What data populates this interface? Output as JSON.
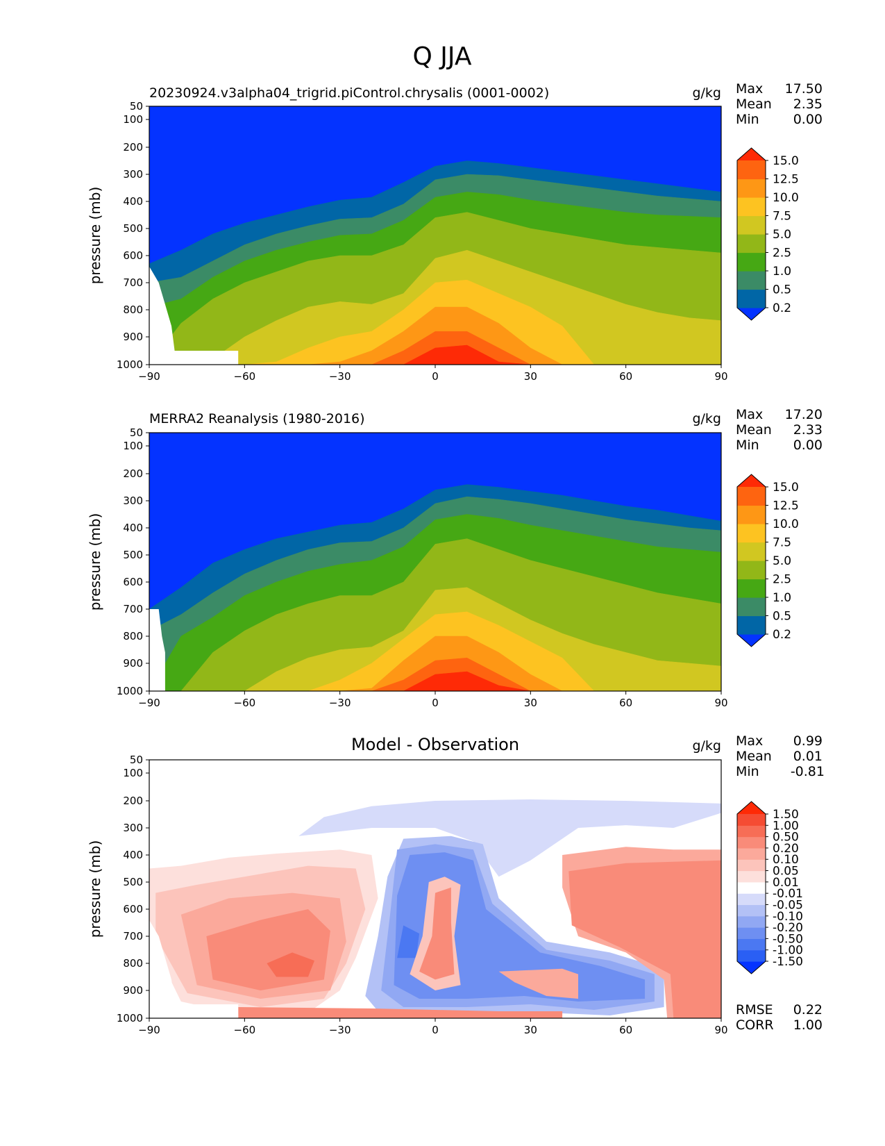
{
  "figure": {
    "title": "Q JJA"
  },
  "panels": [
    {
      "key": "test",
      "title": "20230924.v3alpha04_trigrid.piControl.chrysalis (0001-0002)",
      "units": "g/kg",
      "stats": {
        "max_label": "Max",
        "max": "17.50",
        "mean_label": "Mean",
        "mean": "2.35",
        "min_label": "Min",
        "min": "0.00"
      }
    },
    {
      "key": "ref",
      "title": "MERRA2 Reanalysis (1980-2016)",
      "units": "g/kg",
      "stats": {
        "max_label": "Max",
        "max": "17.20",
        "mean_label": "Mean",
        "mean": "2.33",
        "min_label": "Min",
        "min": "0.00"
      }
    },
    {
      "key": "diff",
      "title": "Model - Observation",
      "units": "g/kg",
      "stats": {
        "max_label": "Max",
        "max": "0.99",
        "mean_label": "Mean",
        "mean": "0.01",
        "min_label": "Min",
        "min": "-0.81"
      },
      "metrics": {
        "rmse_label": "RMSE",
        "rmse": "0.22",
        "corr_label": "CORR",
        "corr": "1.00"
      }
    }
  ],
  "chart_data": [
    {
      "type": "heatmap",
      "panel": "test",
      "x_ticks": [
        "−90",
        "−60",
        "−30",
        "0",
        "30",
        "60",
        "90"
      ],
      "y_ticks": [
        "50",
        "100",
        "200",
        "300",
        "400",
        "500",
        "600",
        "700",
        "800",
        "900",
        "1000"
      ],
      "ylabel": "pressure (mb)",
      "xlim": [
        -90,
        90
      ],
      "ylim": [
        1000,
        50
      ],
      "levels": [
        0.2,
        0.5,
        1.0,
        2.5,
        5.0,
        7.5,
        10.0,
        12.5,
        15.0
      ],
      "colors": [
        "#0433ff",
        "#0166a6",
        "#3b8b66",
        "#46a814",
        "#92b718",
        "#d1c721",
        "#fdc321",
        "#fe9715",
        "#fe6410",
        "#fe2a06"
      ],
      "colorbar_labels": [
        "15.0",
        "12.5",
        "10.0",
        "7.5",
        "5.0",
        "2.5",
        "1.0",
        "0.5",
        "0.2"
      ],
      "contour_tops_mb": {
        "lat": [
          -90,
          -80,
          -70,
          -60,
          -50,
          -40,
          -30,
          -20,
          -10,
          0,
          10,
          20,
          30,
          40,
          50,
          60,
          70,
          80,
          90
        ],
        "0.2": [
          630,
          580,
          520,
          480,
          450,
          420,
          395,
          385,
          330,
          270,
          250,
          260,
          275,
          290,
          305,
          320,
          335,
          350,
          365
        ],
        "0.5": [
          700,
          680,
          620,
          560,
          520,
          490,
          465,
          460,
          410,
          320,
          300,
          305,
          320,
          335,
          350,
          365,
          380,
          390,
          400
        ],
        "1.0": [
          790,
          760,
          680,
          620,
          580,
          550,
          525,
          520,
          470,
          385,
          365,
          375,
          395,
          410,
          425,
          440,
          450,
          455,
          460
        ],
        "2.5": [
          1000,
          850,
          760,
          700,
          660,
          620,
          600,
          600,
          560,
          460,
          440,
          470,
          500,
          520,
          540,
          560,
          570,
          580,
          590
        ],
        "5.0": [
          1000,
          1000,
          980,
          900,
          840,
          790,
          770,
          780,
          740,
          610,
          580,
          620,
          660,
          700,
          740,
          780,
          810,
          830,
          840
        ],
        "7.5": [
          1000,
          1000,
          1000,
          1000,
          990,
          940,
          900,
          880,
          800,
          700,
          690,
          740,
          790,
          860,
          1000,
          1000,
          1000,
          1000,
          1000
        ],
        "10.0": [
          1000,
          1000,
          1000,
          1000,
          1000,
          1000,
          990,
          950,
          880,
          790,
          790,
          850,
          940,
          1000,
          1000,
          1000,
          1000,
          1000,
          1000
        ],
        "12.5": [
          1000,
          1000,
          1000,
          1000,
          1000,
          1000,
          1000,
          1000,
          950,
          880,
          880,
          940,
          1000,
          1000,
          1000,
          1000,
          1000,
          1000,
          1000
        ],
        "15.0": [
          1000,
          1000,
          1000,
          1000,
          1000,
          1000,
          1000,
          1000,
          1000,
          940,
          930,
          990,
          1000,
          1000,
          1000,
          1000,
          1000,
          1000,
          1000
        ]
      }
    },
    {
      "type": "heatmap",
      "panel": "ref",
      "x_ticks": [
        "−90",
        "−60",
        "−30",
        "0",
        "30",
        "60",
        "90"
      ],
      "y_ticks": [
        "50",
        "100",
        "200",
        "300",
        "400",
        "500",
        "600",
        "700",
        "800",
        "900",
        "1000"
      ],
      "ylabel": "pressure (mb)",
      "xlim": [
        -90,
        90
      ],
      "ylim": [
        1000,
        50
      ],
      "levels": [
        0.2,
        0.5,
        1.0,
        2.5,
        5.0,
        7.5,
        10.0,
        12.5,
        15.0
      ],
      "colors": [
        "#0433ff",
        "#0166a6",
        "#3b8b66",
        "#46a814",
        "#92b718",
        "#d1c721",
        "#fdc321",
        "#fe9715",
        "#fe6410",
        "#fe2a06"
      ],
      "colorbar_labels": [
        "15.0",
        "12.5",
        "10.0",
        "7.5",
        "5.0",
        "2.5",
        "1.0",
        "0.5",
        "0.2"
      ],
      "contour_tops_mb": {
        "lat": [
          -90,
          -80,
          -70,
          -60,
          -50,
          -40,
          -30,
          -20,
          -10,
          0,
          10,
          20,
          30,
          40,
          50,
          60,
          70,
          80,
          90
        ],
        "0.2": [
          700,
          620,
          530,
          480,
          440,
          415,
          390,
          380,
          330,
          260,
          240,
          250,
          265,
          280,
          300,
          320,
          335,
          355,
          375
        ],
        "0.5": [
          780,
          720,
          640,
          570,
          520,
          480,
          455,
          450,
          400,
          310,
          285,
          295,
          310,
          330,
          350,
          370,
          385,
          400,
          410
        ],
        "1.0": [
          1000,
          800,
          730,
          650,
          600,
          560,
          535,
          520,
          470,
          370,
          350,
          365,
          390,
          410,
          430,
          450,
          470,
          480,
          490
        ],
        "2.5": [
          1000,
          1000,
          860,
          780,
          720,
          680,
          650,
          650,
          600,
          460,
          440,
          480,
          520,
          550,
          580,
          610,
          640,
          660,
          680
        ],
        "5.0": [
          1000,
          1000,
          1000,
          1000,
          930,
          880,
          850,
          840,
          780,
          630,
          620,
          680,
          740,
          790,
          830,
          860,
          890,
          900,
          910
        ],
        "7.5": [
          1000,
          1000,
          1000,
          1000,
          1000,
          1000,
          960,
          900,
          810,
          720,
          710,
          760,
          820,
          880,
          1000,
          1000,
          1000,
          1000,
          1000
        ],
        "10.0": [
          1000,
          1000,
          1000,
          1000,
          1000,
          1000,
          1000,
          990,
          890,
          800,
          800,
          860,
          940,
          1000,
          1000,
          1000,
          1000,
          1000,
          1000
        ],
        "12.5": [
          1000,
          1000,
          1000,
          1000,
          1000,
          1000,
          1000,
          1000,
          960,
          890,
          880,
          940,
          1000,
          1000,
          1000,
          1000,
          1000,
          1000,
          1000
        ],
        "15.0": [
          1000,
          1000,
          1000,
          1000,
          1000,
          1000,
          1000,
          1000,
          1000,
          940,
          930,
          980,
          1000,
          1000,
          1000,
          1000,
          1000,
          1000,
          1000
        ]
      }
    },
    {
      "type": "heatmap",
      "panel": "diff",
      "x_ticks": [
        "−90",
        "−60",
        "−30",
        "0",
        "30",
        "60",
        "90"
      ],
      "y_ticks": [
        "50",
        "100",
        "200",
        "300",
        "400",
        "500",
        "600",
        "700",
        "800",
        "900",
        "1000"
      ],
      "ylabel": "pressure (mb)",
      "xlim": [
        -90,
        90
      ],
      "ylim": [
        1000,
        50
      ],
      "levels": [
        -1.5,
        -1.0,
        -0.5,
        -0.2,
        -0.1,
        -0.05,
        -0.01,
        0.01,
        0.05,
        0.1,
        0.2,
        0.5,
        1.0,
        1.5
      ],
      "colors": [
        "#0433ff",
        "#2a5ff4",
        "#4b78f2",
        "#6e8ff2",
        "#91a8f3",
        "#b3c1f6",
        "#d6dbfa",
        "#ffffff",
        "#fde0dc",
        "#fcc4bb",
        "#fba99b",
        "#f98b79",
        "#f76d56",
        "#f54c33",
        "#fe2a06"
      ],
      "colorbar_labels": [
        "1.50",
        "1.00",
        "0.50",
        "0.20",
        "0.10",
        "0.05",
        "0.01",
        "-0.01",
        "-0.05",
        "-0.10",
        "-0.20",
        "-0.50",
        "-1.00",
        "-1.50"
      ]
    }
  ]
}
